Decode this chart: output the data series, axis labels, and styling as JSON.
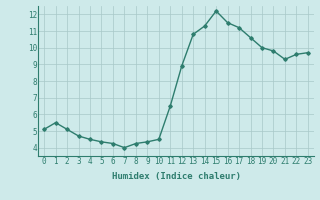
{
  "x": [
    0,
    1,
    2,
    3,
    4,
    5,
    6,
    7,
    8,
    9,
    10,
    11,
    12,
    13,
    14,
    15,
    16,
    17,
    18,
    19,
    20,
    21,
    22,
    23
  ],
  "y": [
    5.1,
    5.5,
    5.1,
    4.7,
    4.5,
    4.35,
    4.25,
    4.0,
    4.25,
    4.35,
    4.5,
    6.5,
    8.9,
    10.8,
    11.3,
    12.2,
    11.5,
    11.2,
    10.6,
    10.0,
    9.8,
    9.3,
    9.6,
    9.7
  ],
  "xlim": [
    -0.5,
    23.5
  ],
  "ylim": [
    3.5,
    12.5
  ],
  "yticks": [
    4,
    5,
    6,
    7,
    8,
    9,
    10,
    11,
    12
  ],
  "xtick_labels": [
    "0",
    "1",
    "2",
    "3",
    "4",
    "5",
    "6",
    "7",
    "8",
    "9",
    "10",
    "11",
    "12",
    "13",
    "14",
    "15",
    "16",
    "17",
    "18",
    "19",
    "20",
    "21",
    "22",
    "23"
  ],
  "xlabel": "Humidex (Indice chaleur)",
  "line_color": "#2e7d6e",
  "marker": "D",
  "marker_size": 1.8,
  "bg_color": "#ceeaea",
  "grid_color": "#a8c8c8",
  "line_width": 1.0,
  "tick_fontsize": 5.5,
  "xlabel_fontsize": 6.5
}
